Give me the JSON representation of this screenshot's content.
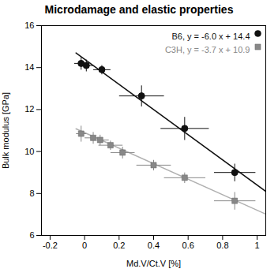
{
  "chart_data": {
    "type": "scatter",
    "title": "Microdamage and elastic properties",
    "xlabel": "Md.V/Ct.V [%]",
    "ylabel": "Bulk modulus [GPa]",
    "xlim": [
      -0.25,
      1.05
    ],
    "ylim": [
      6,
      16
    ],
    "xticks": [
      -0.2,
      0,
      0.2,
      0.4,
      0.6,
      0.8,
      1
    ],
    "yticks": [
      6,
      8,
      10,
      12,
      14,
      16
    ],
    "legend": "upper right",
    "series": [
      {
        "type": "line",
        "color": "#111111",
        "x": [
          -0.05,
          1.05
        ],
        "values": [
          14.7,
          8.1
        ]
      },
      {
        "type": "line",
        "color": "#b0b0b0",
        "x": [
          -0.05,
          1.05
        ],
        "values": [
          11.085,
          7.015
        ]
      },
      {
        "type": "scatter",
        "name": "B6, y = -6.0 x + 14.4",
        "color": "#111111",
        "marker": "circle",
        "x": [
          -0.02,
          0.01,
          0.1,
          0.33,
          0.58,
          0.87
        ],
        "values": [
          14.2,
          14.1,
          13.9,
          12.65,
          11.1,
          9.0
        ],
        "xerr": [
          0.04,
          0.04,
          0.05,
          0.13,
          0.14,
          0.12
        ],
        "yerr": [
          0.3,
          0.28,
          0.22,
          0.5,
          0.55,
          0.42
        ]
      },
      {
        "type": "scatter",
        "name": "C3H, y = -3.7 x + 10.9",
        "color": "#888888",
        "marker": "square",
        "x": [
          -0.02,
          0.05,
          0.09,
          0.15,
          0.22,
          0.4,
          0.58,
          0.87
        ],
        "values": [
          10.85,
          10.65,
          10.55,
          10.3,
          9.95,
          9.35,
          8.75,
          7.65
        ],
        "xerr": [
          0.03,
          0.05,
          0.05,
          0.07,
          0.07,
          0.1,
          0.12,
          0.12
        ],
        "yerr": [
          0.38,
          0.28,
          0.25,
          0.22,
          0.28,
          0.25,
          0.25,
          0.42
        ]
      }
    ]
  }
}
